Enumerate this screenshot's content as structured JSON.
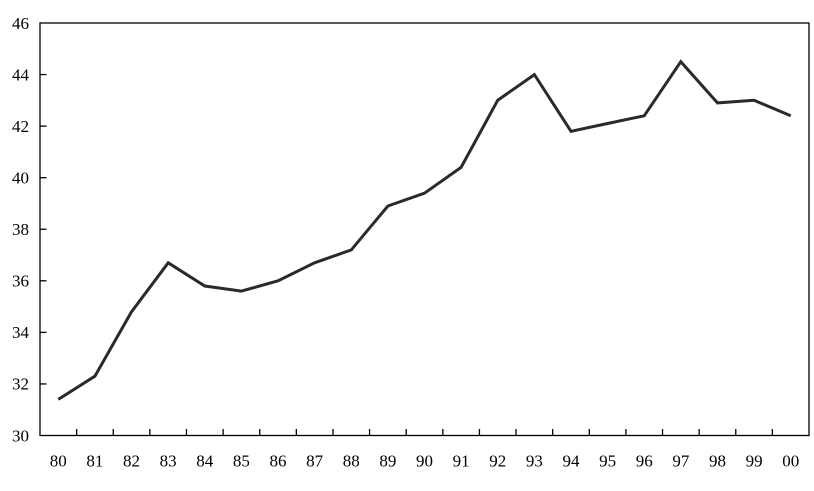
{
  "chart_data": {
    "type": "line",
    "title": "",
    "xlabel": "",
    "ylabel": "",
    "categories": [
      "80",
      "81",
      "82",
      "83",
      "84",
      "85",
      "86",
      "87",
      "88",
      "89",
      "90",
      "91",
      "92",
      "93",
      "94",
      "95",
      "96",
      "97",
      "98",
      "99",
      "00"
    ],
    "values": [
      31.4,
      32.3,
      34.8,
      36.7,
      35.8,
      35.6,
      36.0,
      36.7,
      37.2,
      38.9,
      39.4,
      40.4,
      43.0,
      44.0,
      41.8,
      42.1,
      42.4,
      44.5,
      42.9,
      43.0,
      42.4
    ],
    "ylim": [
      30,
      46
    ],
    "yticks": [
      30,
      32,
      34,
      36,
      38,
      40,
      42,
      44,
      46
    ],
    "ytick_step": 2,
    "grid": false,
    "legend": null,
    "tick_position": "inside",
    "plot_border": "box",
    "line_color": "#2a2a2a",
    "axis_color": "#000000",
    "text_color": "#000000",
    "background_color": "#ffffff",
    "line_width": 3
  }
}
